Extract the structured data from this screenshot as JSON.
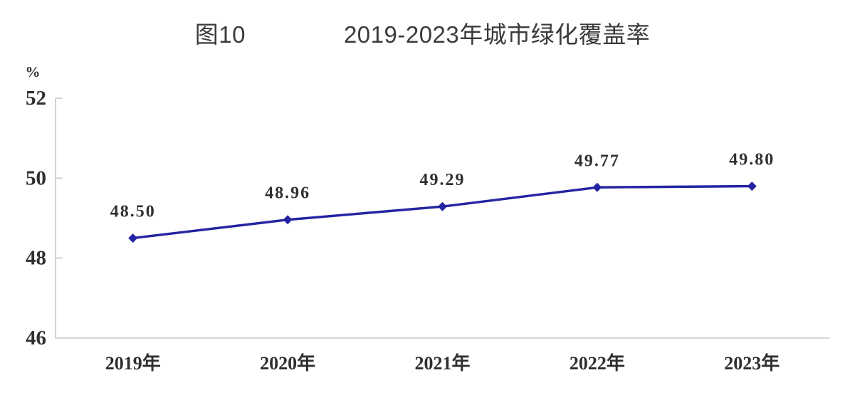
{
  "header": {
    "figure_label": "图10",
    "title": "2019-2023年城市绿化覆盖率"
  },
  "chart_data": {
    "type": "line",
    "title": "2019-2023年城市绿化覆盖率",
    "figure_number": "图10",
    "unit_label": "%",
    "categories": [
      "2019年",
      "2020年",
      "2021年",
      "2022年",
      "2023年"
    ],
    "series": [
      {
        "name": "城市绿化覆盖率",
        "values": [
          48.5,
          48.96,
          49.29,
          49.77,
          49.8
        ]
      }
    ],
    "point_labels": [
      "48.50",
      "48.96",
      "49.29",
      "49.77",
      "49.80"
    ],
    "ylim": [
      46,
      52
    ],
    "y_ticks": [
      46,
      48,
      50,
      52
    ],
    "grid": false,
    "legend": "none",
    "marker": "diamond",
    "line_color": "#2424A3",
    "axis_color": "#c9c9c9",
    "label_color": "#2f2f2f",
    "title_color": "#3b3b3b"
  }
}
